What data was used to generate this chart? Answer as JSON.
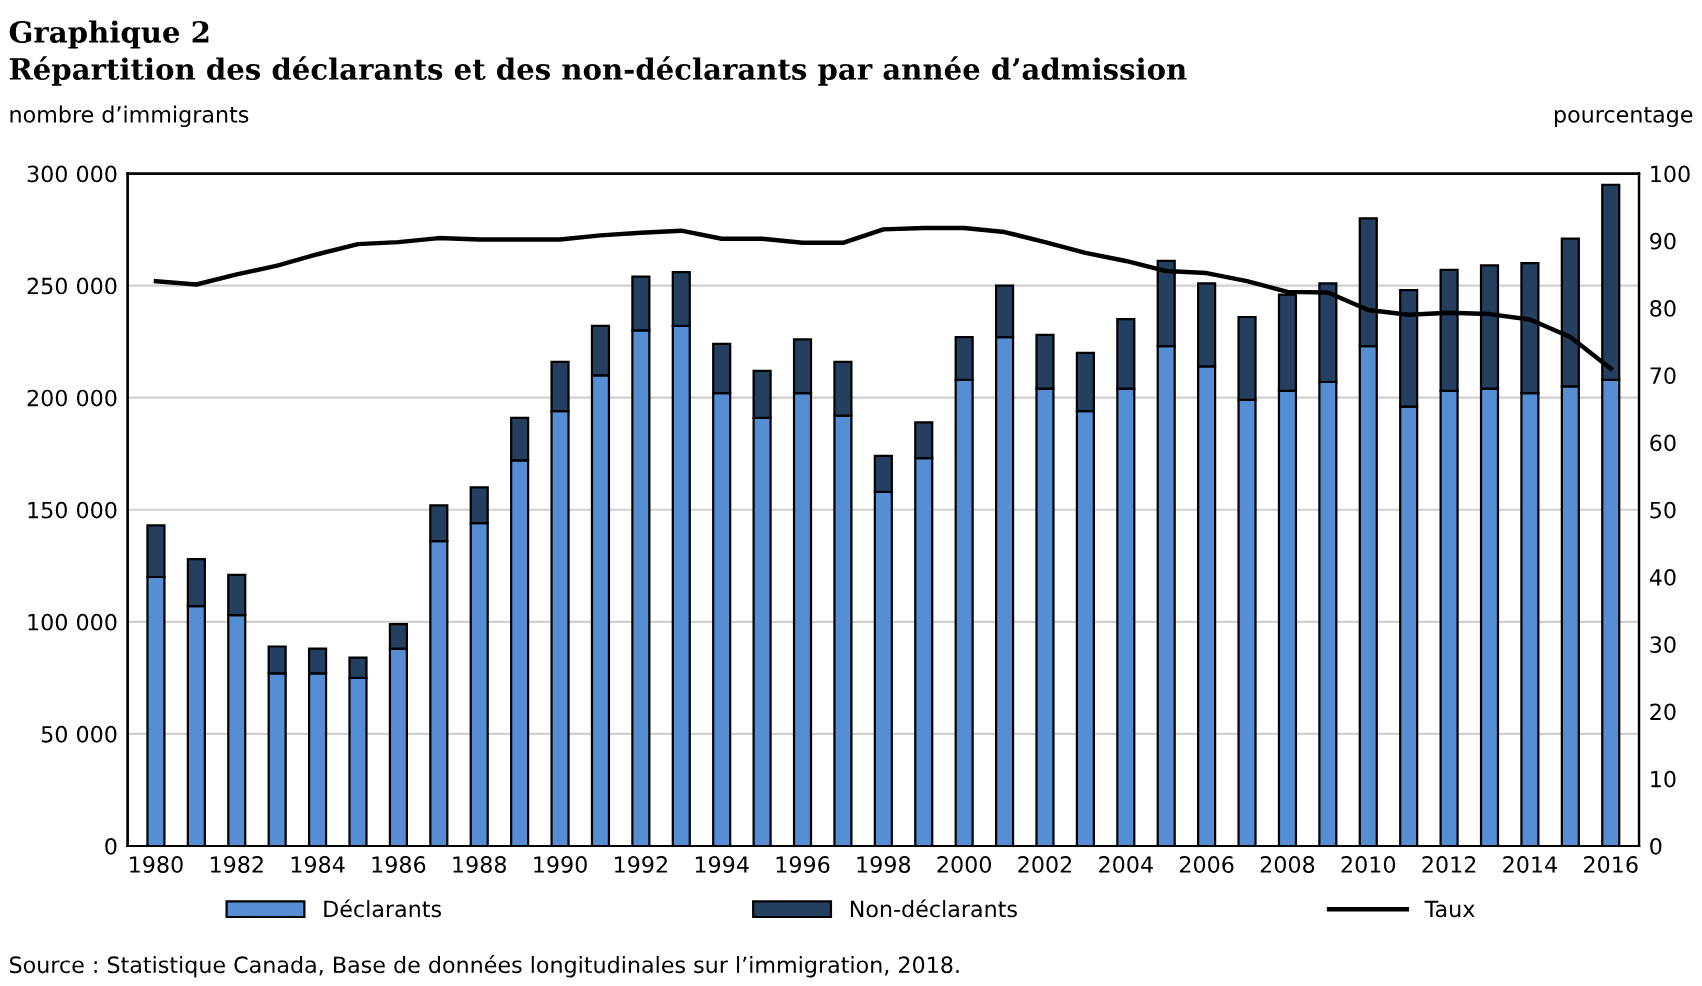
{
  "chart_data": {
    "type": "bar",
    "stacked": true,
    "title": "Graphique 2",
    "subtitle": "Répartition des déclarants et des non-déclarants par année d’admission",
    "ylabel": "nombre d’immigrants",
    "y2label": "pourcentage",
    "categories": [
      "1980",
      null,
      "1982",
      null,
      "1984",
      null,
      "1986",
      null,
      "1988",
      null,
      "1990",
      null,
      "1992",
      null,
      "1994",
      null,
      "1996",
      null,
      "1998",
      null,
      "2000",
      null,
      "2002",
      null,
      "2004",
      null,
      "2006",
      null,
      "2008",
      null,
      "2010",
      null,
      "2012",
      null,
      "2014",
      null,
      "2016"
    ],
    "series": [
      {
        "name": "Déclarants",
        "color": "#558ed5",
        "values": [
          120000,
          107000,
          103000,
          77000,
          77000,
          75000,
          88000,
          136000,
          144000,
          172000,
          194000,
          210000,
          230000,
          232000,
          202000,
          191000,
          202000,
          192000,
          158000,
          173000,
          208000,
          227000,
          204000,
          194000,
          204000,
          223000,
          214000,
          199000,
          203000,
          207000,
          223000,
          196000,
          203000,
          204000,
          202000,
          205000,
          208000
        ]
      },
      {
        "name": "Non-déclarants",
        "color": "#243f60",
        "values": [
          23000,
          21000,
          18000,
          12000,
          11000,
          9000,
          11000,
          16000,
          16000,
          19000,
          22000,
          22000,
          24000,
          24000,
          22000,
          21000,
          24000,
          24000,
          16000,
          16000,
          19000,
          23000,
          24000,
          26000,
          31000,
          38000,
          37000,
          37000,
          43000,
          44000,
          57000,
          52000,
          54000,
          55000,
          58000,
          66000,
          87000
        ]
      },
      {
        "name": "Taux",
        "type": "line",
        "axis": "y2",
        "color": "#000000",
        "values": [
          84,
          83.5,
          85,
          86.3,
          88,
          89.5,
          89.8,
          90.4,
          90.2,
          90.2,
          90.2,
          90.8,
          91.2,
          91.5,
          90.3,
          90.3,
          89.7,
          89.7,
          91.7,
          91.9,
          91.9,
          91.3,
          89.8,
          88.2,
          87,
          85.5,
          85.2,
          84,
          82.4,
          82.3,
          79.7,
          79,
          79.3,
          79.1,
          78.3,
          75.7,
          71
        ]
      }
    ],
    "ylim": [
      0,
      300000
    ],
    "yticks": [
      0,
      {
        "value": 50000,
        "label": "50 000"
      },
      {
        "value": 100000,
        "label": "100 000"
      },
      {
        "value": 150000,
        "label": "150 000"
      },
      {
        "value": 200000,
        "label": "200 000"
      },
      {
        "value": 250000,
        "label": "250 000"
      },
      {
        "value": 300000,
        "label": "300 000"
      }
    ],
    "y2lim": [
      0,
      100
    ],
    "y2ticks": [
      0,
      10,
      20,
      30,
      40,
      50,
      60,
      70,
      80,
      90,
      100
    ],
    "grid": "y",
    "legend": "bottom",
    "annotations": [
      "Source : Statistique Canada, Base de données longitudinales sur l’immigration, 2018."
    ]
  }
}
